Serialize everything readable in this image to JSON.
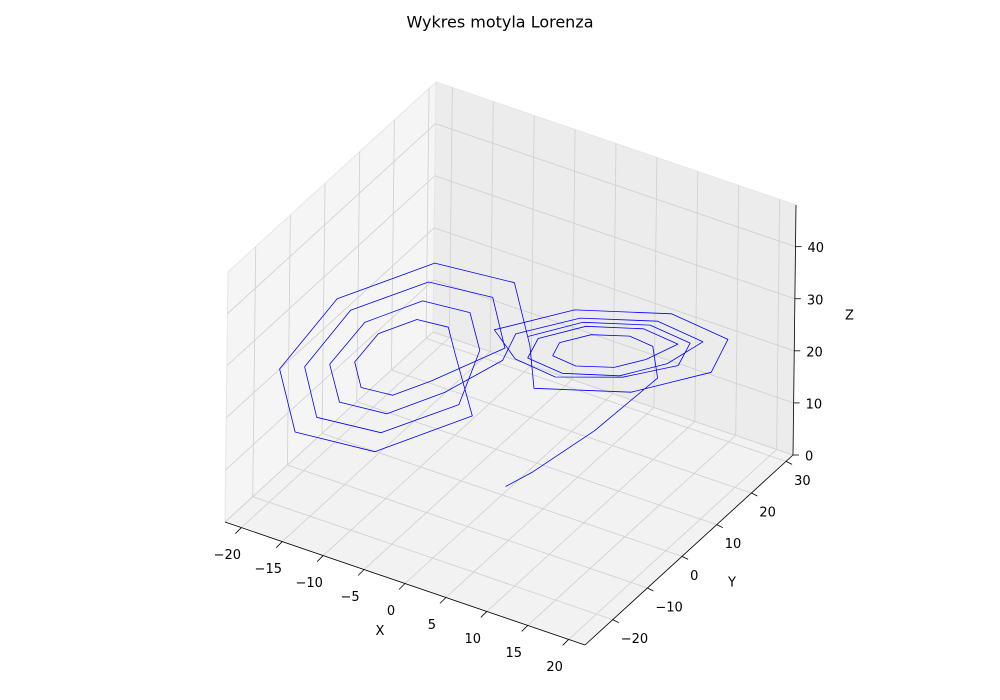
{
  "chart_data": {
    "type": "line3d",
    "title": "Wykres motyla Lorenza",
    "xlabel": "X",
    "ylabel": "Y",
    "zlabel": "Z",
    "color": "blue",
    "grid": true,
    "x": [
      0,
      2,
      7,
      12.5,
      12.5,
      11.3,
      8.5,
      5.7,
      4.5,
      5.7,
      8.5,
      11.3,
      14.5,
      12.7,
      8.5,
      4.3,
      2.5,
      4.3,
      8.5,
      12.7,
      16.5,
      14.2,
      8.5,
      2.8,
      0.5,
      -4.3,
      -8.5,
      -12.7,
      -14.5,
      -12.7,
      -8.5,
      -4.3,
      -2.5,
      -2.8,
      -8.5,
      -14.2,
      -16.5,
      -14.2,
      -8.5,
      -2.8,
      -0.5,
      -5.7,
      -8.5,
      -11.3,
      -12.5,
      -11.3,
      -8.5,
      -5.7,
      -4.5,
      -1.4,
      -8.5,
      -15.6,
      -18.5,
      -15.6,
      -8.5,
      -1.4,
      1.5,
      1.4,
      8.5,
      15.6,
      18.5,
      15.6,
      8.5,
      1.4,
      1.5,
      3.6,
      8.5,
      13.4,
      15.5,
      13.4,
      8.5,
      3.6
    ],
    "y": [
      1,
      4,
      10,
      15,
      13.5,
      9.6,
      5.1,
      2.6,
      3.5,
      7.4,
      11.9,
      14.4,
      16,
      10.2,
      3.5,
      -0.3,
      1,
      6.8,
      13.5,
      17.3,
      18.5,
      10.8,
      1.8,
      -3.3,
      -1.5,
      -6.8,
      -13.5,
      -17.3,
      -16,
      -10.2,
      -3.5,
      0.3,
      -1,
      -6.2,
      -15.2,
      -20.3,
      -18.5,
      -10.8,
      -1.8,
      3.3,
      1.5,
      -7.4,
      -11.9,
      -14.4,
      -13.5,
      -9.6,
      -5.1,
      -2.6,
      -3.5,
      -5.6,
      -16.9,
      -23.2,
      -21,
      -11.4,
      -0.1,
      6.2,
      4,
      5.6,
      16.9,
      23.2,
      21,
      11.4,
      0.1,
      -6.2,
      -0.2,
      6.5,
      14.4,
      18.8,
      17.2,
      10.5,
      2.6,
      -1.8
    ],
    "z": [
      1,
      3,
      10,
      20,
      27,
      30.7,
      32.2,
      30.7,
      27,
      23.3,
      21.8,
      23.3,
      27,
      32.5,
      34.8,
      32.5,
      27,
      21.5,
      19.2,
      21.5,
      27,
      34.4,
      37.4,
      34.4,
      27,
      21.5,
      19.2,
      21.5,
      27,
      32.5,
      34.8,
      32.5,
      27,
      19.6,
      16.6,
      19.6,
      27,
      34.4,
      37.4,
      34.4,
      27,
      23.3,
      21.8,
      23.3,
      27,
      30.7,
      32.2,
      30.7,
      27,
      17.8,
      14,
      17.8,
      27,
      36.2,
      40,
      36.2,
      27,
      17.8,
      14,
      17.8,
      27,
      36.2,
      40,
      36.2,
      27,
      20.6,
      18.4,
      20.6,
      27,
      33.4,
      36.1,
      33.4
    ],
    "xlim": [
      -22,
      22
    ],
    "ylim": [
      -28,
      32
    ],
    "zlim": [
      0,
      48
    ],
    "xticks": [
      {
        "value": -20,
        "label": "−20"
      },
      {
        "value": -15,
        "label": "−15"
      },
      {
        "value": -10,
        "label": "−10"
      },
      {
        "value": -5,
        "label": "−5"
      },
      0,
      5,
      10,
      15,
      20
    ],
    "yticks": [
      {
        "value": -20,
        "label": "−20"
      },
      {
        "value": -10,
        "label": "−10"
      },
      0,
      10,
      20,
      30
    ],
    "zticks": [
      0,
      10,
      20,
      30,
      40
    ]
  }
}
